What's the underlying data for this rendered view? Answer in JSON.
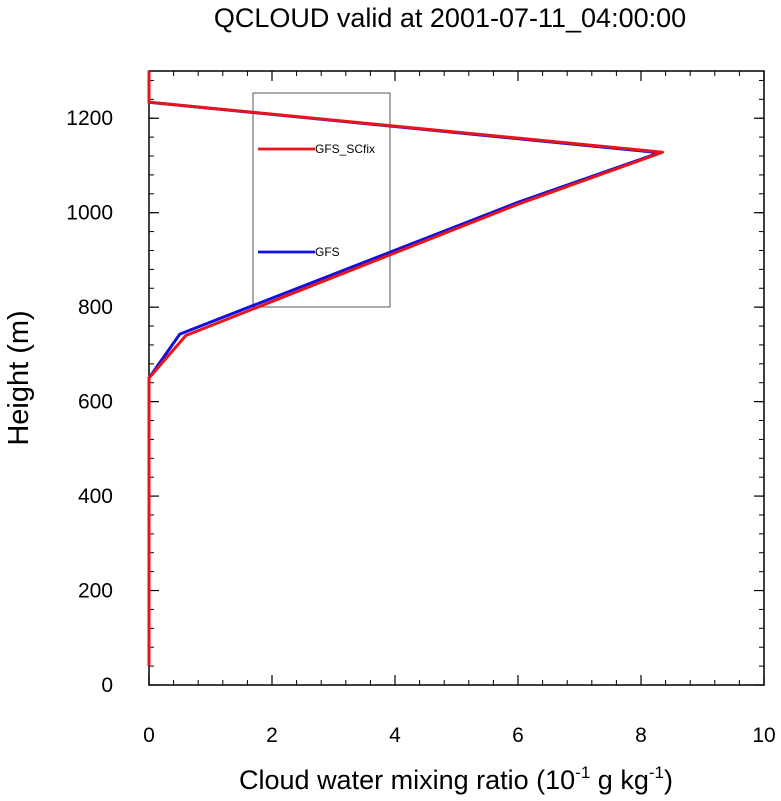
{
  "chart_data": {
    "type": "line",
    "title": "QCLOUD valid at 2001-07-11_04:00:00",
    "xlabel": {
      "main": "Cloud water mixing ratio (10",
      "exp1": "-1",
      "mid": " g kg",
      "exp2": "-1",
      "end": ")"
    },
    "ylabel": "Height (m)",
    "xlim": [
      0,
      10
    ],
    "ylim": [
      0,
      1300
    ],
    "xticks": [
      0,
      2,
      4,
      6,
      8,
      10
    ],
    "yticks": [
      0,
      200,
      400,
      600,
      800,
      1000,
      1200
    ],
    "x_minor_step": 0.4,
    "y_minor_step": 40,
    "grid": false,
    "legend_placement": "upper-center",
    "series": [
      {
        "name": "GFS_SCfix",
        "color": "#e8141b",
        "points": [
          [
            0,
            40
          ],
          [
            0,
            650
          ],
          [
            0.6,
            740
          ],
          [
            6.0,
            1018
          ],
          [
            8.35,
            1128
          ],
          [
            0,
            1234
          ],
          [
            0,
            1300
          ]
        ]
      },
      {
        "name": "GFS",
        "color": "#1010e0",
        "points": [
          [
            0,
            40
          ],
          [
            0,
            650
          ],
          [
            0.5,
            743
          ],
          [
            6.0,
            1022
          ],
          [
            8.3,
            1127
          ],
          [
            0,
            1234
          ],
          [
            0,
            1300
          ]
        ]
      }
    ],
    "draw_order": [
      1,
      0
    ]
  }
}
